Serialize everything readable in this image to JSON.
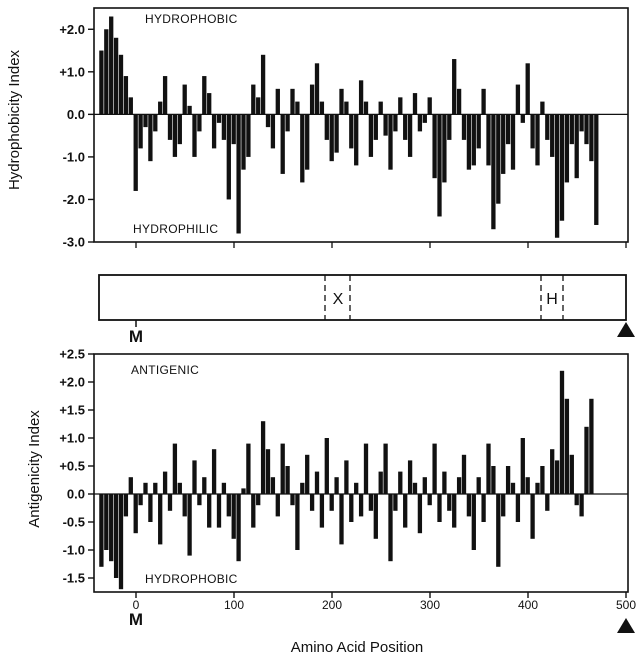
{
  "chart_data": [
    {
      "type": "bar",
      "ylabel": "Hydrophobicity Index",
      "xlabel": "",
      "xlim": [
        -36,
        500
      ],
      "ylim": [
        -3.0,
        2.5
      ],
      "yticks": [
        -3.0,
        -2.0,
        -1.0,
        0.0,
        1.0,
        2.0
      ],
      "ytick_labels": [
        "-3.0",
        "-2.0",
        "-1.0",
        "0.0",
        "+1.0",
        "+2.0"
      ],
      "annotations": [
        "HYDROPHOBIC",
        "HYDROPHILIC"
      ],
      "x_start": -35,
      "x_step": 5,
      "values": [
        1.5,
        2.0,
        2.3,
        1.8,
        1.4,
        0.9,
        0.4,
        -1.8,
        -0.8,
        -0.3,
        -1.1,
        -0.4,
        0.3,
        0.9,
        -0.6,
        -1.0,
        -0.7,
        0.7,
        0.2,
        -1.0,
        -0.4,
        0.9,
        0.5,
        -0.8,
        -0.2,
        -0.6,
        -2.0,
        -0.7,
        -2.8,
        -1.3,
        -1.0,
        0.7,
        0.4,
        1.4,
        -0.3,
        -0.8,
        0.6,
        -1.4,
        -0.4,
        0.6,
        0.3,
        -1.6,
        -1.3,
        0.7,
        1.2,
        0.3,
        -0.6,
        -1.1,
        -0.9,
        0.6,
        0.3,
        -0.8,
        -1.2,
        0.8,
        0.3,
        -1.0,
        -0.6,
        0.3,
        -0.5,
        -1.3,
        -0.4,
        0.4,
        -0.6,
        -1.0,
        0.5,
        -0.4,
        -0.2,
        0.4,
        -1.5,
        -2.4,
        -1.6,
        -0.6,
        1.3,
        0.6,
        -0.6,
        -1.3,
        -1.2,
        -0.8,
        0.6,
        -1.2,
        -2.7,
        -2.1,
        -1.4,
        -0.7,
        -1.3,
        0.7,
        -0.2,
        1.2,
        -0.8,
        -1.2,
        0.3,
        -0.6,
        -1.0,
        -2.9,
        -2.5,
        -1.6,
        -0.7,
        -1.5,
        -0.4,
        -0.7,
        -1.1,
        -2.6
      ],
      "domains": [
        {
          "label": "X",
          "start": 190,
          "end": 215
        },
        {
          "label": "H",
          "start": 409,
          "end": 431
        }
      ],
      "markers": [
        {
          "label": "M",
          "position": 0
        },
        {
          "label": "▲",
          "position": 500
        }
      ]
    },
    {
      "type": "bar",
      "ylabel": "Antigenicity Index",
      "xlabel": "Amino Acid Position",
      "xlim": [
        -36,
        500
      ],
      "ylim": [
        -1.75,
        2.5
      ],
      "yticks": [
        -1.5,
        -1.0,
        -0.5,
        0.0,
        0.5,
        1.0,
        1.5,
        2.0,
        2.5
      ],
      "ytick_labels": [
        "-1.5",
        "-1.0",
        "-0.5",
        "0.0",
        "+0.5",
        "+1.0",
        "+1.5",
        "+2.0",
        "+2.5"
      ],
      "xticks": [
        0,
        100,
        200,
        300,
        400,
        500
      ],
      "xtick_labels": [
        "0",
        "100",
        "200",
        "300",
        "400",
        "500"
      ],
      "annotations": [
        "ANTIGENIC",
        "HYDROPHOBIC"
      ],
      "x_start": -35,
      "x_step": 5,
      "values": [
        -1.3,
        -1.0,
        -1.2,
        -1.5,
        -1.7,
        -0.4,
        0.3,
        -0.7,
        -0.2,
        0.2,
        -0.5,
        0.2,
        -0.9,
        0.4,
        -0.3,
        0.9,
        0.2,
        -0.4,
        -1.1,
        0.6,
        -0.2,
        0.3,
        -0.6,
        0.8,
        -0.6,
        0.2,
        -0.4,
        -0.8,
        -1.2,
        0.1,
        0.9,
        -0.6,
        -0.2,
        1.3,
        0.8,
        0.3,
        -0.4,
        0.9,
        0.5,
        -0.2,
        -1.0,
        0.2,
        0.7,
        -0.3,
        0.4,
        -0.6,
        1.0,
        -0.3,
        0.3,
        -0.9,
        0.6,
        -0.5,
        0.2,
        -0.4,
        0.9,
        -0.3,
        -0.8,
        0.4,
        0.9,
        -1.2,
        -0.3,
        0.4,
        -0.6,
        0.6,
        0.2,
        -0.7,
        0.3,
        -0.2,
        0.9,
        -0.5,
        0.4,
        -0.3,
        -0.6,
        0.3,
        0.7,
        -0.4,
        -1.0,
        0.3,
        -0.5,
        0.9,
        0.5,
        -1.3,
        -0.4,
        0.5,
        0.2,
        -0.5,
        1.0,
        0.3,
        -0.8,
        0.2,
        0.5,
        -0.3,
        0.8,
        0.6,
        2.2,
        1.7,
        0.7,
        -0.2,
        -0.4,
        1.2,
        1.7
      ]
    }
  ]
}
